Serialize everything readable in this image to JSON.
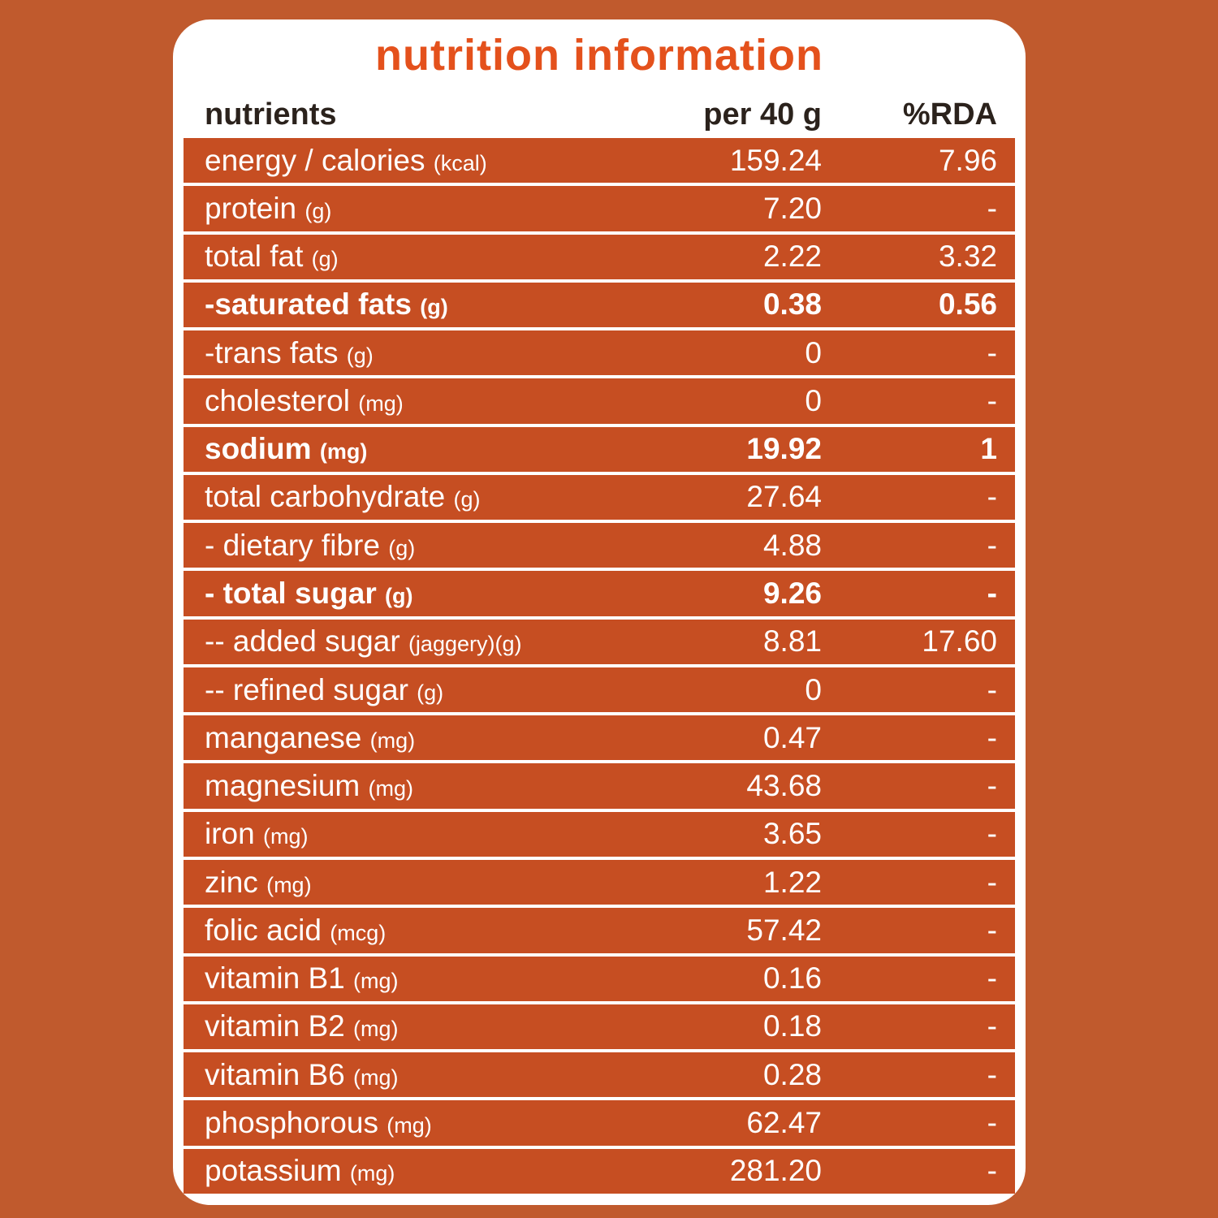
{
  "title": "nutrition information",
  "colors": {
    "background": "#c05a2d",
    "table_orange": "#c64e22",
    "card_white": "#ffffff",
    "title_orange": "#e4511c",
    "header_text": "#2b221c"
  },
  "table": {
    "headers": [
      "nutrients",
      "per 40 g",
      "%RDA"
    ],
    "rows": [
      {
        "name": "energy / calories",
        "unit": "(kcal)",
        "per": "159.24",
        "rda": "7.96",
        "bold": false
      },
      {
        "name": "protein",
        "unit": "(g)",
        "per": "7.20",
        "rda": "-",
        "bold": false
      },
      {
        "name": "total fat",
        "unit": "(g)",
        "per": "2.22",
        "rda": "3.32",
        "bold": false
      },
      {
        "name": "-saturated fats",
        "unit": "(g)",
        "per": "0.38",
        "rda": "0.56",
        "bold": true
      },
      {
        "name": "-trans fats",
        "unit": "(g)",
        "per": "0",
        "rda": "-",
        "bold": false
      },
      {
        "name": "cholesterol",
        "unit": "(mg)",
        "per": "0",
        "rda": "-",
        "bold": false
      },
      {
        "name": "sodium",
        "unit": "(mg)",
        "per": "19.92",
        "rda": "1",
        "bold": true
      },
      {
        "name": "total carbohydrate",
        "unit": "(g)",
        "per": "27.64",
        "rda": "-",
        "bold": false
      },
      {
        "name": "- dietary fibre",
        "unit": "(g)",
        "per": "4.88",
        "rda": "-",
        "bold": false
      },
      {
        "name": "- total sugar",
        "unit": "(g)",
        "per": "9.26",
        "rda": "-",
        "bold": true
      },
      {
        "name": "-- added sugar",
        "unit": "(jaggery)(g)",
        "per": "8.81",
        "rda": "17.60",
        "bold": false
      },
      {
        "name": "-- refined sugar",
        "unit": "(g)",
        "per": "0",
        "rda": "-",
        "bold": false
      },
      {
        "name": "manganese",
        "unit": "(mg)",
        "per": "0.47",
        "rda": "-",
        "bold": false
      },
      {
        "name": "magnesium",
        "unit": "(mg)",
        "per": "43.68",
        "rda": "-",
        "bold": false
      },
      {
        "name": "iron",
        "unit": "(mg)",
        "per": "3.65",
        "rda": "-",
        "bold": false
      },
      {
        "name": "zinc",
        "unit": "(mg)",
        "per": "1.22",
        "rda": "-",
        "bold": false
      },
      {
        "name": "folic acid",
        "unit": "(mcg)",
        "per": "57.42",
        "rda": "-",
        "bold": false
      },
      {
        "name": "vitamin B1",
        "unit": "(mg)",
        "per": "0.16",
        "rda": "-",
        "bold": false
      },
      {
        "name": "vitamin B2",
        "unit": "(mg)",
        "per": "0.18",
        "rda": "-",
        "bold": false
      },
      {
        "name": "vitamin B6",
        "unit": "(mg)",
        "per": "0.28",
        "rda": "-",
        "bold": false
      },
      {
        "name": "phosphorous",
        "unit": "(mg)",
        "per": "62.47",
        "rda": "-",
        "bold": false
      },
      {
        "name": "potassium",
        "unit": "(mg)",
        "per": "281.20",
        "rda": "-",
        "bold": false
      }
    ]
  }
}
